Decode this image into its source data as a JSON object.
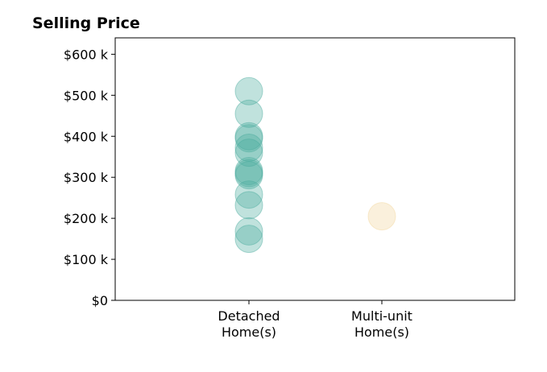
{
  "chart_data": {
    "type": "scatter",
    "title": "Selling Price",
    "xlabel": "",
    "ylabel": "",
    "categories": [
      [
        "Detached",
        "Home(s)"
      ],
      [
        "Multi-unit",
        "Home(s)"
      ]
    ],
    "yticks": [
      {
        "value": 0,
        "label": "$0"
      },
      {
        "value": 100000,
        "label": "$100 k"
      },
      {
        "value": 200000,
        "label": "$200 k"
      },
      {
        "value": 300000,
        "label": "$300 k"
      },
      {
        "value": 400000,
        "label": "$400 k"
      },
      {
        "value": 500000,
        "label": "$500 k"
      },
      {
        "value": 600000,
        "label": "$600 k"
      }
    ],
    "ylim": [
      0,
      640000
    ],
    "grid": false,
    "legend": "none",
    "series": [
      {
        "category_index": 0,
        "color": "#4aab9e",
        "values": [
          510000,
          455000,
          400000,
          395000,
          372000,
          360000,
          315000,
          310000,
          305000,
          258000,
          232000,
          168000,
          150000
        ]
      },
      {
        "category_index": 1,
        "color": "#f2d49a",
        "values": [
          205000
        ]
      }
    ]
  }
}
